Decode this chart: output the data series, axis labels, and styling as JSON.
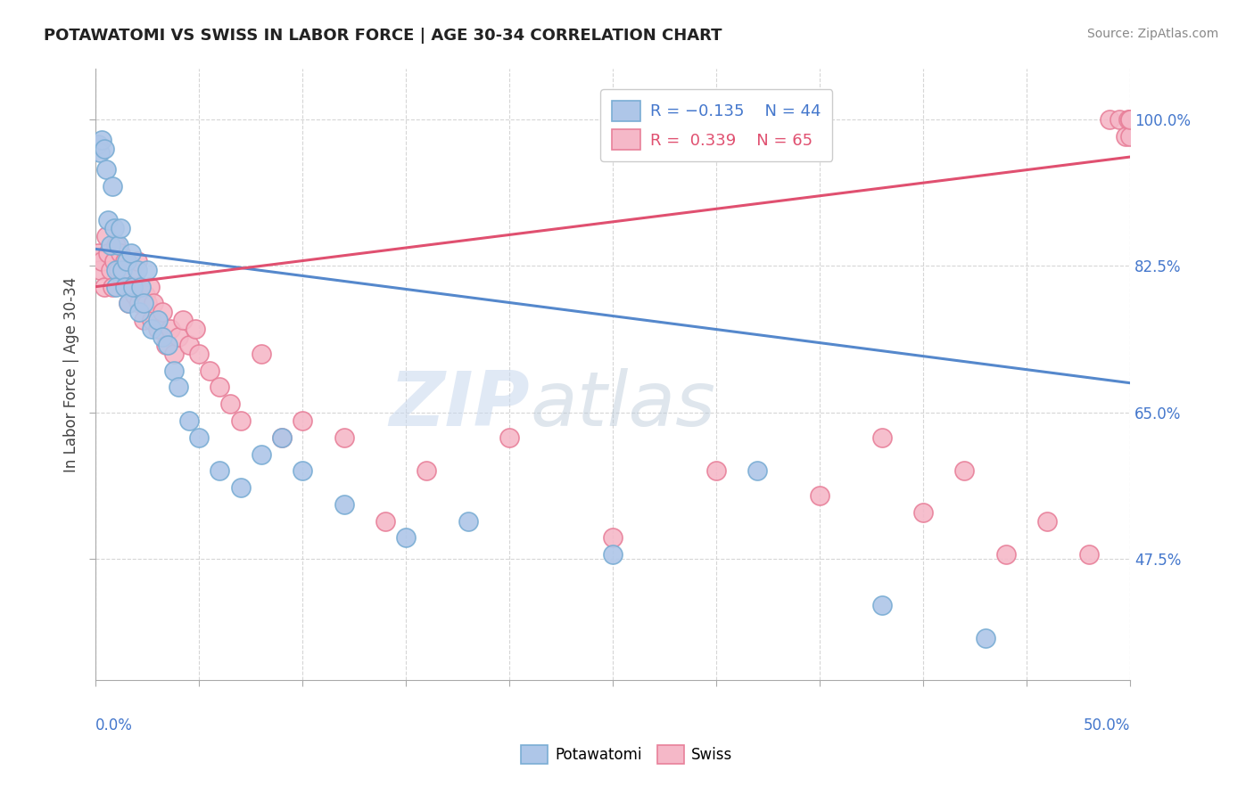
{
  "title": "POTAWATOMI VS SWISS IN LABOR FORCE | AGE 30-34 CORRELATION CHART",
  "source_text": "Source: ZipAtlas.com",
  "ylabel": "In Labor Force | Age 30-34",
  "xlim": [
    0.0,
    0.5
  ],
  "ylim": [
    0.33,
    1.06
  ],
  "ytick_values": [
    0.475,
    0.65,
    0.825,
    1.0
  ],
  "blue_color": "#aec6e8",
  "pink_color": "#f5b8c8",
  "blue_edge": "#7aadd4",
  "pink_edge": "#e8809a",
  "blue_line": "#5588cc",
  "pink_line": "#e05070",
  "watermark_zip": "ZIP",
  "watermark_atlas": "atlas",
  "blue_scatter_x": [
    0.001,
    0.002,
    0.003,
    0.004,
    0.005,
    0.006,
    0.007,
    0.008,
    0.009,
    0.01,
    0.01,
    0.011,
    0.012,
    0.013,
    0.014,
    0.015,
    0.016,
    0.017,
    0.018,
    0.02,
    0.021,
    0.022,
    0.023,
    0.025,
    0.027,
    0.03,
    0.032,
    0.035,
    0.038,
    0.04,
    0.045,
    0.05,
    0.06,
    0.07,
    0.08,
    0.09,
    0.1,
    0.12,
    0.15,
    0.18,
    0.25,
    0.32,
    0.38,
    0.43
  ],
  "blue_scatter_y": [
    0.97,
    0.96,
    0.975,
    0.965,
    0.94,
    0.88,
    0.85,
    0.92,
    0.87,
    0.82,
    0.8,
    0.85,
    0.87,
    0.82,
    0.8,
    0.83,
    0.78,
    0.84,
    0.8,
    0.82,
    0.77,
    0.8,
    0.78,
    0.82,
    0.75,
    0.76,
    0.74,
    0.73,
    0.7,
    0.68,
    0.64,
    0.62,
    0.58,
    0.56,
    0.6,
    0.62,
    0.58,
    0.54,
    0.5,
    0.52,
    0.48,
    0.58,
    0.42,
    0.38
  ],
  "pink_scatter_x": [
    0.001,
    0.002,
    0.003,
    0.004,
    0.005,
    0.006,
    0.007,
    0.008,
    0.009,
    0.01,
    0.011,
    0.012,
    0.013,
    0.014,
    0.015,
    0.016,
    0.017,
    0.018,
    0.019,
    0.02,
    0.021,
    0.022,
    0.023,
    0.024,
    0.025,
    0.026,
    0.027,
    0.028,
    0.03,
    0.032,
    0.034,
    0.036,
    0.038,
    0.04,
    0.042,
    0.045,
    0.048,
    0.05,
    0.055,
    0.06,
    0.065,
    0.07,
    0.08,
    0.09,
    0.1,
    0.12,
    0.14,
    0.16,
    0.2,
    0.25,
    0.3,
    0.35,
    0.38,
    0.4,
    0.42,
    0.44,
    0.46,
    0.48,
    0.49,
    0.495,
    0.498,
    0.499,
    0.5,
    0.5,
    0.5
  ],
  "pink_scatter_y": [
    0.84,
    0.82,
    0.83,
    0.8,
    0.86,
    0.84,
    0.82,
    0.8,
    0.83,
    0.85,
    0.82,
    0.84,
    0.81,
    0.83,
    0.8,
    0.78,
    0.82,
    0.8,
    0.79,
    0.83,
    0.78,
    0.8,
    0.76,
    0.79,
    0.78,
    0.8,
    0.76,
    0.78,
    0.75,
    0.77,
    0.73,
    0.75,
    0.72,
    0.74,
    0.76,
    0.73,
    0.75,
    0.72,
    0.7,
    0.68,
    0.66,
    0.64,
    0.72,
    0.62,
    0.64,
    0.62,
    0.52,
    0.58,
    0.62,
    0.5,
    0.58,
    0.55,
    0.62,
    0.53,
    0.58,
    0.48,
    0.52,
    0.48,
    1.0,
    1.0,
    0.98,
    1.0,
    1.0,
    0.98,
    1.0
  ],
  "blue_line_x0": 0.0,
  "blue_line_x1": 0.5,
  "blue_line_y0": 0.845,
  "blue_line_y1": 0.685,
  "pink_line_x0": 0.0,
  "pink_line_x1": 0.5,
  "pink_line_y0": 0.8,
  "pink_line_y1": 0.955
}
